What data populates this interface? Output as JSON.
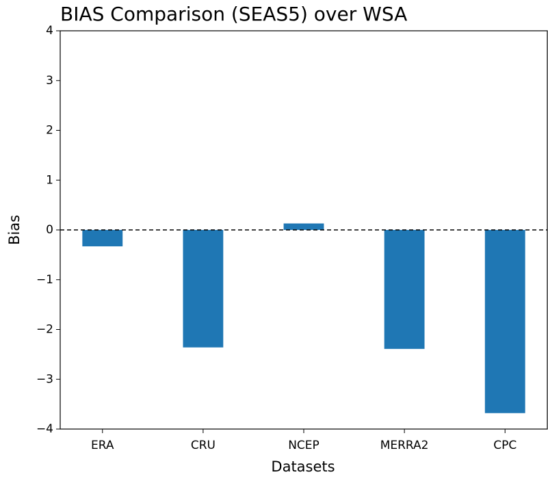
{
  "chart_data": {
    "type": "bar",
    "title": "BIAS Comparison (SEAS5) over WSA",
    "xlabel": "Datasets",
    "ylabel": "Bias",
    "categories": [
      "ERA",
      "CRU",
      "NCEP",
      "MERRA2",
      "CPC"
    ],
    "values": [
      -0.33,
      -2.36,
      0.13,
      -2.39,
      -3.68
    ],
    "color": "#1f77b4",
    "ylim": [
      -4,
      4
    ],
    "yticks": [
      {
        "value": -4,
        "label": "−4"
      },
      {
        "value": -3,
        "label": "−3"
      },
      {
        "value": -2,
        "label": "−2"
      },
      {
        "value": -1,
        "label": "−1"
      },
      0,
      1,
      2,
      3,
      4
    ],
    "hline": 0,
    "grid": false
  }
}
